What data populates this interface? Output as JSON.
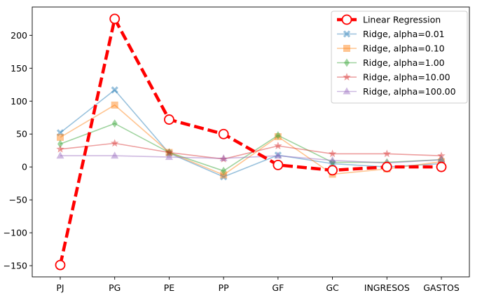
{
  "chart_data": {
    "type": "line",
    "title": "",
    "xlabel": "",
    "ylabel": "",
    "categories": [
      "PJ",
      "PG",
      "PE",
      "PP",
      "GF",
      "GC",
      "INGRESOS",
      "GASTOS"
    ],
    "yticks": [
      -150,
      -100,
      -50,
      0,
      50,
      100,
      150,
      200
    ],
    "ylim": [
      -167,
      243
    ],
    "grid": false,
    "legend_position": "top-right",
    "series": [
      {
        "name": "Linear Regression",
        "color": "#ff0000",
        "marker": "circle-open",
        "style": "dashed-thick",
        "values": [
          -149,
          225,
          72,
          50,
          3,
          -5,
          0,
          0
        ]
      },
      {
        "name": "Ridge, alpha=0.01",
        "color": "#1f77b4",
        "marker": "x",
        "style": "solid",
        "values": [
          52,
          117,
          21,
          -15,
          18,
          5,
          0,
          5
        ]
      },
      {
        "name": "Ridge, alpha=0.10",
        "color": "#ff7f0e",
        "marker": "square",
        "style": "solid",
        "values": [
          45,
          94,
          22,
          -12,
          46,
          -11,
          -3,
          8
        ]
      },
      {
        "name": "Ridge, alpha=1.00",
        "color": "#2ca02c",
        "marker": "diamond",
        "style": "solid",
        "values": [
          35,
          66,
          22,
          -6,
          48,
          7,
          7,
          11
        ]
      },
      {
        "name": "Ridge, alpha=10.00",
        "color": "#d62728",
        "marker": "star",
        "style": "solid",
        "values": [
          27,
          36,
          22,
          12,
          32,
          20,
          20,
          17
        ]
      },
      {
        "name": "Ridge, alpha=100.00",
        "color": "#9467bd",
        "marker": "triangle",
        "style": "solid",
        "values": [
          17,
          17,
          15,
          13,
          17,
          10,
          6,
          11
        ]
      }
    ]
  }
}
